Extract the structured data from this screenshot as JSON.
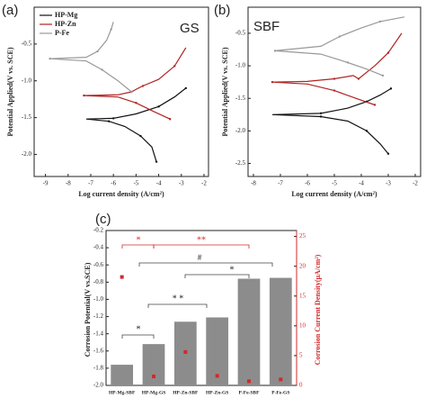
{
  "chart_data": [
    {
      "type": "line",
      "panel": "(a)",
      "title": "GS",
      "x_label": "Log current density (A/cm²)",
      "y_label": "Potential Applied(V vs. SCE)",
      "xlim": [
        -9.5,
        -1.8
      ],
      "ylim": [
        -2.3,
        0.0
      ],
      "xticks": [
        -9,
        -8,
        -7,
        -6,
        -5,
        -4,
        -3,
        -2
      ],
      "yticks": [
        -0.5,
        {
          "value": -1,
          "label": "-1.0"
        },
        -1.5,
        {
          "value": -2,
          "label": "-2.0"
        }
      ],
      "legend": true,
      "series": [
        {
          "name": "HP-Mg",
          "color": "#111111",
          "x": [
            -4.1,
            -4.3,
            -4.8,
            -5.5,
            -6.2,
            -7.2,
            -6.0,
            -5.0,
            -4.0,
            -3.3,
            -2.8
          ],
          "values": [
            -2.1,
            -1.9,
            -1.75,
            -1.62,
            -1.55,
            -1.52,
            -1.51,
            -1.45,
            -1.35,
            -1.22,
            -1.1
          ]
        },
        {
          "name": "HP-Zn",
          "color": "#b22222",
          "x": [
            -3.5,
            -4.2,
            -5.0,
            -5.8,
            -7.3,
            -5.8,
            -5.2,
            -4.9,
            -4.7,
            -4.0,
            -3.3,
            -2.8
          ],
          "values": [
            -1.52,
            -1.42,
            -1.3,
            -1.22,
            -1.2,
            -1.19,
            -1.15,
            -1.1,
            -1.07,
            -0.98,
            -0.8,
            -0.55
          ]
        },
        {
          "name": "P-Fe",
          "color": "#999999",
          "x": [
            -5.2,
            -5.8,
            -6.5,
            -7.2,
            -8.8,
            -7.2,
            -6.7,
            -6.3,
            -6.1,
            -6.0
          ],
          "values": [
            -1.15,
            -1.0,
            -0.85,
            -0.73,
            -0.7,
            -0.68,
            -0.6,
            -0.45,
            -0.3,
            -0.2
          ]
        }
      ]
    },
    {
      "type": "line",
      "panel": "(b)",
      "title": "SBF",
      "x_label": "Log current density (A/cm²)",
      "y_label": "Potential Applied(V vs. SCE)",
      "xlim": [
        -8.2,
        -1.8
      ],
      "ylim": [
        -2.7,
        -0.1
      ],
      "xticks": [
        -8,
        -7,
        -6,
        -5,
        -4,
        -3,
        -2
      ],
      "yticks": [
        -0.5,
        {
          "value": -1,
          "label": "-1.0"
        },
        -1.5,
        {
          "value": -2,
          "label": "-2.0"
        },
        -2.5
      ],
      "legend": false,
      "series": [
        {
          "name": "HP-Mg",
          "color": "#111111",
          "x": [
            -3.0,
            -3.3,
            -3.8,
            -4.5,
            -5.5,
            -7.3,
            -5.5,
            -4.5,
            -3.8,
            -3.3,
            -2.9
          ],
          "values": [
            -2.35,
            -2.2,
            -2.0,
            -1.85,
            -1.78,
            -1.75,
            -1.73,
            -1.65,
            -1.55,
            -1.45,
            -1.35
          ]
        },
        {
          "name": "HP-Zn",
          "color": "#b22222",
          "x": [
            -3.5,
            -4.2,
            -5.0,
            -6.0,
            -7.3,
            -6.0,
            -5.0,
            -4.3,
            -4.1,
            -3.5,
            -3.0,
            -2.5
          ],
          "values": [
            -1.6,
            -1.5,
            -1.38,
            -1.28,
            -1.25,
            -1.24,
            -1.2,
            -1.15,
            -1.2,
            -1.0,
            -0.8,
            -0.5
          ]
        },
        {
          "name": "P-Fe",
          "color": "#999999",
          "x": [
            -3.2,
            -3.8,
            -4.5,
            -5.5,
            -7.2,
            -5.5,
            -4.8,
            -4.0,
            -3.3,
            -2.4
          ],
          "values": [
            -1.15,
            -1.05,
            -0.95,
            -0.82,
            -0.77,
            -0.7,
            -0.55,
            -0.42,
            -0.32,
            -0.25
          ]
        }
      ]
    },
    {
      "type": "bar",
      "panel": "(c)",
      "y_label": "Corrosion Potential(V vs.SCE)",
      "y2_label": "Corrosion Current Density(μA/cm²)",
      "categories": [
        "HP-Mg-SBF",
        "HP-Mg-GS",
        "HP-Zn-SBF",
        "HP-Zn-GS",
        "P-Fe-SBF",
        "P-Fe-GS"
      ],
      "ylim": [
        -2.0,
        -0.2
      ],
      "yticks": [
        {
          "value": -2,
          "label": "-2.0"
        },
        -1.8,
        -1.6,
        -1.4,
        -1.2,
        {
          "value": -1,
          "label": "-1.0"
        },
        -0.8,
        -0.6,
        -0.4,
        -0.2
      ],
      "y2lim": [
        0,
        26
      ],
      "y2ticks": [
        0,
        5,
        10,
        15,
        20,
        25
      ],
      "series": [
        {
          "color": "#8c8c8c",
          "values": [
            -1.76,
            -1.52,
            -1.26,
            -1.21,
            -0.76,
            -0.75
          ]
        },
        {
          "color": "#d62728",
          "axis": "y2",
          "values": [
            18.2,
            1.5,
            5.6,
            1.6,
            0.7,
            1.0
          ]
        }
      ],
      "annotations": [
        "*",
        "**",
        "#",
        "*",
        "* *",
        "*"
      ]
    }
  ]
}
